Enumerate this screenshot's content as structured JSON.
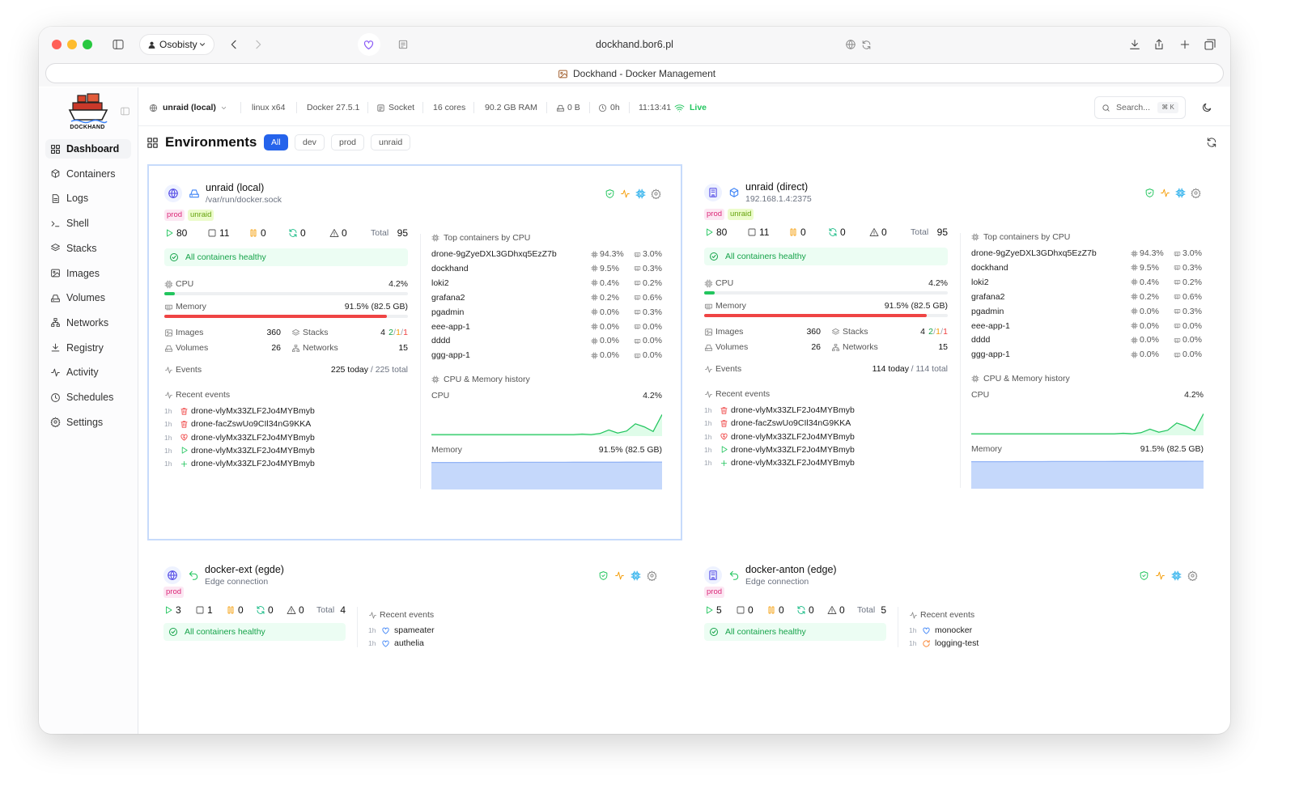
{
  "browser": {
    "profile": "Osobisty",
    "url": "dockhand.bor6.pl",
    "tab_title": "Dockhand - Docker Management"
  },
  "sidebar": {
    "logo": "DOCKHAND",
    "nav": [
      "Dashboard",
      "Containers",
      "Logs",
      "Shell",
      "Stacks",
      "Images",
      "Volumes",
      "Networks",
      "Registry",
      "Activity",
      "Schedules",
      "Settings"
    ],
    "active": 0
  },
  "topbar": {
    "environment": "unraid (local)",
    "platform": "linux x64",
    "docker": "Docker 27.5.1",
    "connection": "Socket",
    "cores": "16 cores",
    "ram": "90.2 GB RAM",
    "disk": "0 B",
    "uptime": "0h",
    "time": "11:13:41",
    "status": "Live",
    "search": "Search...",
    "shortcut": "⌘ K"
  },
  "header": {
    "title": "Environments",
    "filters": [
      "All",
      "dev",
      "prod",
      "unraid"
    ],
    "active_filter": 0
  },
  "environments": [
    {
      "name": "unraid (local)",
      "address": "/var/run/docker.sock",
      "icon": "globe",
      "connection_icon": "disk",
      "selected": true,
      "tags": [
        {
          "label": "prod",
          "color": "#db2777",
          "bg": "#fce7f3"
        },
        {
          "label": "unraid",
          "color": "#65a30d",
          "bg": "#ecfccb"
        }
      ],
      "counts": {
        "running": "80",
        "stopped": "11",
        "paused": "0",
        "restarting": "0",
        "unhealthy": "0",
        "total_label": "Total",
        "total": "95"
      },
      "health": "All containers healthy",
      "cpu": {
        "label": "CPU",
        "value": 4.2,
        "text": "4.2%",
        "xlim": [
          0,
          100
        ]
      },
      "memory": {
        "label": "Memory",
        "value": 91.5,
        "text": "91.5% (82.5 GB)",
        "xlim": [
          0,
          100
        ]
      },
      "stats": {
        "images": {
          "label": "Images",
          "value": "360"
        },
        "volumes": {
          "label": "Volumes",
          "value": "26"
        },
        "stacks": {
          "label": "Stacks",
          "value": "4",
          "breakdown": [
            {
              "text": "2",
              "color": "#16a34a"
            },
            {
              "text": "/",
              "color": "#9ca3af"
            },
            {
              "text": "1",
              "color": "#f59e0b"
            },
            {
              "text": "/",
              "color": "#9ca3af"
            },
            {
              "text": "1",
              "color": "#ef4444"
            }
          ]
        },
        "networks": {
          "label": "Networks",
          "value": "15"
        }
      },
      "events": {
        "label": "Events",
        "today": "225 today",
        "total": "/ 225 total"
      },
      "recent": {
        "label": "Recent events",
        "items": [
          {
            "time": "1h",
            "name": "drone-vlyMx33ZLF2Jo4MYBmyb",
            "kind": "delete"
          },
          {
            "time": "1h",
            "name": "drone-facZswUo9CIl34nG9KKA",
            "kind": "delete"
          },
          {
            "time": "1h",
            "name": "drone-vlyMx33ZLF2Jo4MYBmyb",
            "kind": "unhealthy"
          },
          {
            "time": "1h",
            "name": "drone-vlyMx33ZLF2Jo4MYBmyb",
            "kind": "start"
          },
          {
            "time": "1h",
            "name": "drone-vlyMx33ZLF2Jo4MYBmyb",
            "kind": "create"
          }
        ]
      },
      "top": {
        "label": "Top containers by CPU",
        "rows": [
          {
            "name": "drone-9gZyeDXL3GDhxq5EzZ7b",
            "cpu": "94.3%",
            "mem": "3.0%"
          },
          {
            "name": "dockhand",
            "cpu": "9.5%",
            "mem": "0.3%"
          },
          {
            "name": "loki2",
            "cpu": "0.4%",
            "mem": "0.2%"
          },
          {
            "name": "grafana2",
            "cpu": "0.2%",
            "mem": "0.6%"
          },
          {
            "name": "pgadmin",
            "cpu": "0.0%",
            "mem": "0.3%"
          },
          {
            "name": "eee-app-1",
            "cpu": "0.0%",
            "mem": "0.0%"
          },
          {
            "name": "dddd",
            "cpu": "0.0%",
            "mem": "0.0%"
          },
          {
            "name": "ggg-app-1",
            "cpu": "0.0%",
            "mem": "0.0%"
          }
        ]
      },
      "history": {
        "label": "CPU & Memory history",
        "cpu": {
          "label": "CPU",
          "text": "4.2%",
          "ylim": [
            0,
            6
          ],
          "values": [
            0.3,
            0.3,
            0.3,
            0.3,
            0.3,
            0.3,
            0.3,
            0.3,
            0.3,
            0.3,
            0.3,
            0.3,
            0.3,
            0.3,
            0.3,
            0.3,
            0.3,
            0.4,
            0.3,
            0.5,
            1.2,
            0.6,
            1.0,
            2.4,
            1.8,
            0.9,
            4.2
          ]
        },
        "memory": {
          "label": "Memory",
          "text": "91.5% (82.5 GB)",
          "ylim": [
            0,
            100
          ],
          "values": [
            90.2,
            90.3,
            90.3,
            90.4,
            90.4,
            90.5,
            90.5,
            90.6,
            90.6,
            90.7,
            90.7,
            90.7,
            90.8,
            90.8,
            90.9,
            90.9,
            91,
            91,
            91.1,
            91.1,
            91.2,
            91.2,
            91.3,
            91.3,
            91.4,
            91.5,
            91.5
          ]
        }
      }
    },
    {
      "name": "unraid (direct)",
      "address": "192.168.1.4:2375",
      "icon": "building",
      "connection_icon": "cube",
      "selected": false,
      "tags": [
        {
          "label": "prod",
          "color": "#db2777",
          "bg": "#fce7f3"
        },
        {
          "label": "unraid",
          "color": "#65a30d",
          "bg": "#ecfccb"
        }
      ],
      "counts": {
        "running": "80",
        "stopped": "11",
        "paused": "0",
        "restarting": "0",
        "unhealthy": "0",
        "total_label": "Total",
        "total": "95"
      },
      "health": "All containers healthy",
      "cpu": {
        "label": "CPU",
        "value": 4.2,
        "text": "4.2%",
        "xlim": [
          0,
          100
        ]
      },
      "memory": {
        "label": "Memory",
        "value": 91.5,
        "text": "91.5% (82.5 GB)",
        "xlim": [
          0,
          100
        ]
      },
      "stats": {
        "images": {
          "label": "Images",
          "value": "360"
        },
        "volumes": {
          "label": "Volumes",
          "value": "26"
        },
        "stacks": {
          "label": "Stacks",
          "value": "4",
          "breakdown": [
            {
              "text": "2",
              "color": "#16a34a"
            },
            {
              "text": "/",
              "color": "#9ca3af"
            },
            {
              "text": "1",
              "color": "#f59e0b"
            },
            {
              "text": "/",
              "color": "#9ca3af"
            },
            {
              "text": "1",
              "color": "#ef4444"
            }
          ]
        },
        "networks": {
          "label": "Networks",
          "value": "15"
        }
      },
      "events": {
        "label": "Events",
        "today": "114 today",
        "total": "/ 114 total"
      },
      "recent": {
        "label": "Recent events",
        "items": [
          {
            "time": "1h",
            "name": "drone-vlyMx33ZLF2Jo4MYBmyb",
            "kind": "delete"
          },
          {
            "time": "1h",
            "name": "drone-facZswUo9CIl34nG9KKA",
            "kind": "delete"
          },
          {
            "time": "1h",
            "name": "drone-vlyMx33ZLF2Jo4MYBmyb",
            "kind": "unhealthy"
          },
          {
            "time": "1h",
            "name": "drone-vlyMx33ZLF2Jo4MYBmyb",
            "kind": "start"
          },
          {
            "time": "1h",
            "name": "drone-vlyMx33ZLF2Jo4MYBmyb",
            "kind": "create"
          }
        ]
      },
      "top": {
        "label": "Top containers by CPU",
        "rows": [
          {
            "name": "drone-9gZyeDXL3GDhxq5EzZ7b",
            "cpu": "94.3%",
            "mem": "3.0%"
          },
          {
            "name": "dockhand",
            "cpu": "9.5%",
            "mem": "0.3%"
          },
          {
            "name": "loki2",
            "cpu": "0.4%",
            "mem": "0.2%"
          },
          {
            "name": "grafana2",
            "cpu": "0.2%",
            "mem": "0.6%"
          },
          {
            "name": "pgadmin",
            "cpu": "0.0%",
            "mem": "0.3%"
          },
          {
            "name": "eee-app-1",
            "cpu": "0.0%",
            "mem": "0.0%"
          },
          {
            "name": "dddd",
            "cpu": "0.0%",
            "mem": "0.0%"
          },
          {
            "name": "ggg-app-1",
            "cpu": "0.0%",
            "mem": "0.0%"
          }
        ]
      },
      "history": {
        "label": "CPU & Memory history",
        "cpu": {
          "label": "CPU",
          "text": "4.2%",
          "ylim": [
            0,
            6
          ],
          "values": [
            0.3,
            0.3,
            0.3,
            0.3,
            0.3,
            0.3,
            0.3,
            0.3,
            0.3,
            0.3,
            0.3,
            0.3,
            0.3,
            0.3,
            0.3,
            0.3,
            0.3,
            0.4,
            0.3,
            0.5,
            1.2,
            0.6,
            1.0,
            2.4,
            1.8,
            0.9,
            4.2
          ]
        },
        "memory": {
          "label": "Memory",
          "text": "91.5% (82.5 GB)",
          "ylim": [
            0,
            100
          ],
          "values": [
            90.2,
            90.3,
            90.3,
            90.4,
            90.4,
            90.5,
            90.5,
            90.6,
            90.6,
            90.7,
            90.7,
            90.7,
            90.8,
            90.8,
            90.9,
            90.9,
            91,
            91,
            91.1,
            91.1,
            91.2,
            91.2,
            91.3,
            91.3,
            91.4,
            91.5,
            91.5
          ]
        }
      }
    },
    {
      "name": "docker-ext (egde)",
      "address": "Edge connection",
      "icon": "globe",
      "connection_icon": "edge",
      "selected": false,
      "tags": [
        {
          "label": "prod",
          "color": "#db2777",
          "bg": "#fce7f3"
        }
      ],
      "counts": {
        "running": "3",
        "stopped": "1",
        "paused": "0",
        "restarting": "0",
        "unhealthy": "0",
        "total_label": "Total",
        "total": "4"
      },
      "health": "All containers healthy",
      "recent": {
        "label": "Recent events",
        "items": [
          {
            "time": "1h",
            "name": "spameater",
            "kind": "health"
          },
          {
            "time": "1h",
            "name": "authelia",
            "kind": "health"
          }
        ]
      }
    },
    {
      "name": "docker-anton (edge)",
      "address": "Edge connection",
      "icon": "building",
      "connection_icon": "edge",
      "selected": false,
      "tags": [
        {
          "label": "prod",
          "color": "#db2777",
          "bg": "#fce7f3"
        }
      ],
      "counts": {
        "running": "5",
        "stopped": "0",
        "paused": "0",
        "restarting": "0",
        "unhealthy": "0",
        "total_label": "Total",
        "total": "5"
      },
      "health": "All containers healthy",
      "recent": {
        "label": "Recent events",
        "items": [
          {
            "time": "1h",
            "name": "monocker",
            "kind": "health"
          },
          {
            "time": "1h",
            "name": "logging-test",
            "kind": "restart"
          }
        ]
      }
    }
  ]
}
